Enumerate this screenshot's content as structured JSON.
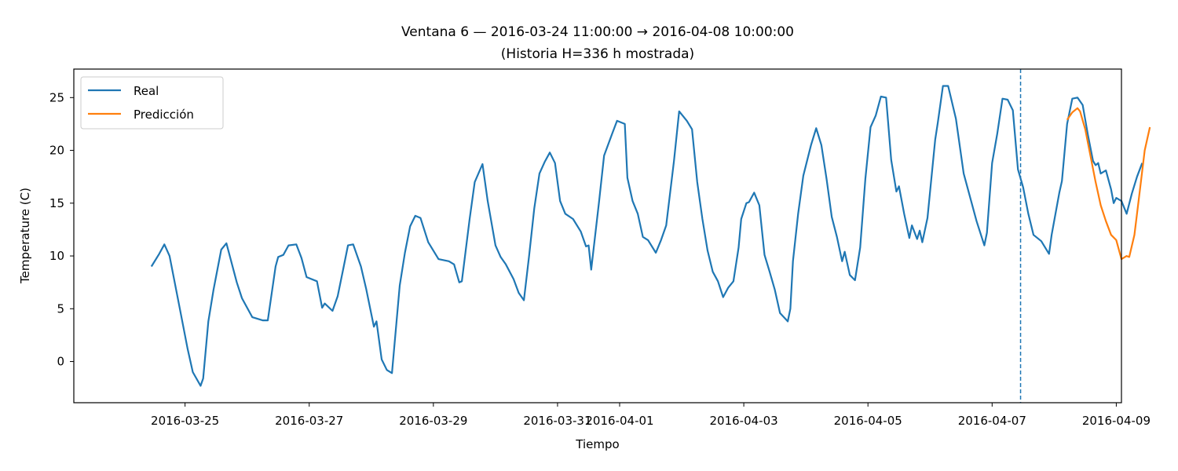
{
  "chart_data": {
    "type": "line",
    "title": "Ventana 6 — 2016-03-24 11:00:00 → 2016-04-08 10:00:00",
    "subtitle": "(Historia H=336 h mostrada)",
    "xlabel": "Tiempo",
    "ylabel": "Temperature (C)",
    "xlim": [
      "2016-03-23T05:00:00",
      "2016-04-09T02:00:00"
    ],
    "ylim": [
      -3.9,
      27.7
    ],
    "xticks": [
      "2016-03-25",
      "2016-03-27",
      "2016-03-29",
      "2016-03-31",
      "2016-04-01",
      "2016-04-03",
      "2016-04-05",
      "2016-04-07",
      "2016-04-09"
    ],
    "yticks": [
      0,
      5,
      10,
      15,
      20,
      25
    ],
    "grid": false,
    "legend_position": "upper left",
    "forecast_start": "2016-04-07T11:00:00",
    "series": [
      {
        "name": "Real",
        "color": "#1f77b4",
        "points": [
          [
            "2016-03-24T11:00:00",
            9.0
          ],
          [
            "2016-03-24T14:00:00",
            10.2
          ],
          [
            "2016-03-24T16:00:00",
            11.1
          ],
          [
            "2016-03-24T18:00:00",
            10.0
          ],
          [
            "2016-03-24T22:00:00",
            5.0
          ],
          [
            "2016-03-25T01:00:00",
            1.2
          ],
          [
            "2016-03-25T03:00:00",
            -1.0
          ],
          [
            "2016-03-25T06:00:00",
            -2.3
          ],
          [
            "2016-03-25T07:00:00",
            -1.6
          ],
          [
            "2016-03-25T09:00:00",
            3.8
          ],
          [
            "2016-03-25T11:00:00",
            6.8
          ],
          [
            "2016-03-25T14:00:00",
            10.6
          ],
          [
            "2016-03-25T16:00:00",
            11.2
          ],
          [
            "2016-03-25T20:00:00",
            7.5
          ],
          [
            "2016-03-25T22:00:00",
            6.0
          ],
          [
            "2016-03-26T02:00:00",
            4.2
          ],
          [
            "2016-03-26T06:00:00",
            3.9
          ],
          [
            "2016-03-26T08:00:00",
            3.9
          ],
          [
            "2016-03-26T11:00:00",
            9.0
          ],
          [
            "2016-03-26T12:00:00",
            9.9
          ],
          [
            "2016-03-26T14:00:00",
            10.1
          ],
          [
            "2016-03-26T16:00:00",
            11.0
          ],
          [
            "2016-03-26T19:00:00",
            11.1
          ],
          [
            "2016-03-26T21:00:00",
            9.8
          ],
          [
            "2016-03-26T23:00:00",
            8.0
          ],
          [
            "2016-03-27T03:00:00",
            7.6
          ],
          [
            "2016-03-27T05:00:00",
            5.1
          ],
          [
            "2016-03-27T06:00:00",
            5.5
          ],
          [
            "2016-03-27T09:00:00",
            4.8
          ],
          [
            "2016-03-27T11:00:00",
            6.2
          ],
          [
            "2016-03-27T13:00:00",
            8.6
          ],
          [
            "2016-03-27T15:00:00",
            11.0
          ],
          [
            "2016-03-27T17:00:00",
            11.1
          ],
          [
            "2016-03-27T20:00:00",
            9.0
          ],
          [
            "2016-03-27T22:00:00",
            6.9
          ],
          [
            "2016-03-28T01:00:00",
            3.3
          ],
          [
            "2016-03-28T02:00:00",
            3.8
          ],
          [
            "2016-03-28T04:00:00",
            0.2
          ],
          [
            "2016-03-28T06:00:00",
            -0.8
          ],
          [
            "2016-03-28T08:00:00",
            -1.1
          ],
          [
            "2016-03-28T11:00:00",
            7.2
          ],
          [
            "2016-03-28T13:00:00",
            10.3
          ],
          [
            "2016-03-28T15:00:00",
            12.8
          ],
          [
            "2016-03-28T17:00:00",
            13.8
          ],
          [
            "2016-03-28T19:00:00",
            13.6
          ],
          [
            "2016-03-28T22:00:00",
            11.3
          ],
          [
            "2016-03-29T02:00:00",
            9.7
          ],
          [
            "2016-03-29T06:00:00",
            9.5
          ],
          [
            "2016-03-29T08:00:00",
            9.2
          ],
          [
            "2016-03-29T10:00:00",
            7.5
          ],
          [
            "2016-03-29T11:00:00",
            7.6
          ],
          [
            "2016-03-29T14:00:00",
            13.5
          ],
          [
            "2016-03-29T16:00:00",
            17.0
          ],
          [
            "2016-03-29T19:00:00",
            18.7
          ],
          [
            "2016-03-29T21:00:00",
            15.2
          ],
          [
            "2016-03-30T00:00:00",
            11.0
          ],
          [
            "2016-03-30T02:00:00",
            9.9
          ],
          [
            "2016-03-30T04:00:00",
            9.2
          ],
          [
            "2016-03-30T07:00:00",
            7.8
          ],
          [
            "2016-03-30T09:00:00",
            6.5
          ],
          [
            "2016-03-30T11:00:00",
            5.8
          ],
          [
            "2016-03-30T13:00:00",
            10.0
          ],
          [
            "2016-03-30T15:00:00",
            14.5
          ],
          [
            "2016-03-30T17:00:00",
            17.8
          ],
          [
            "2016-03-30T19:00:00",
            18.9
          ],
          [
            "2016-03-30T21:00:00",
            19.8
          ],
          [
            "2016-03-30T23:00:00",
            18.8
          ],
          [
            "2016-03-31T01:00:00",
            15.2
          ],
          [
            "2016-03-31T03:00:00",
            14.0
          ],
          [
            "2016-03-31T06:00:00",
            13.5
          ],
          [
            "2016-03-31T09:00:00",
            12.3
          ],
          [
            "2016-03-31T11:00:00",
            10.9
          ],
          [
            "2016-03-31T12:00:00",
            11.0
          ],
          [
            "2016-03-31T13:00:00",
            8.7
          ],
          [
            "2016-03-31T16:00:00",
            15.0
          ],
          [
            "2016-03-31T18:00:00",
            19.5
          ],
          [
            "2016-03-31T21:00:00",
            21.5
          ],
          [
            "2016-03-31T23:00:00",
            22.8
          ],
          [
            "2016-04-01T02:00:00",
            22.5
          ],
          [
            "2016-04-01T03:00:00",
            17.4
          ],
          [
            "2016-04-01T05:00:00",
            15.2
          ],
          [
            "2016-04-01T07:00:00",
            14.0
          ],
          [
            "2016-04-01T09:00:00",
            11.8
          ],
          [
            "2016-04-01T11:00:00",
            11.5
          ],
          [
            "2016-04-01T14:00:00",
            10.3
          ],
          [
            "2016-04-01T16:00:00",
            11.5
          ],
          [
            "2016-04-01T18:00:00",
            12.9
          ],
          [
            "2016-04-01T21:00:00",
            19.0
          ],
          [
            "2016-04-01T23:00:00",
            23.7
          ],
          [
            "2016-04-02T02:00:00",
            22.8
          ],
          [
            "2016-04-02T04:00:00",
            22.0
          ],
          [
            "2016-04-02T06:00:00",
            17.0
          ],
          [
            "2016-04-02T08:00:00",
            13.5
          ],
          [
            "2016-04-02T10:00:00",
            10.5
          ],
          [
            "2016-04-02T12:00:00",
            8.5
          ],
          [
            "2016-04-02T14:00:00",
            7.6
          ],
          [
            "2016-04-02T16:00:00",
            6.1
          ],
          [
            "2016-04-02T18:00:00",
            7.0
          ],
          [
            "2016-04-02T20:00:00",
            7.6
          ],
          [
            "2016-04-02T22:00:00",
            10.8
          ],
          [
            "2016-04-02T23:00:00",
            13.5
          ],
          [
            "2016-04-03T01:00:00",
            15.0
          ],
          [
            "2016-04-03T02:00:00",
            15.1
          ],
          [
            "2016-04-03T04:00:00",
            16.0
          ],
          [
            "2016-04-03T06:00:00",
            14.8
          ],
          [
            "2016-04-03T08:00:00",
            10.1
          ],
          [
            "2016-04-03T10:00:00",
            8.5
          ],
          [
            "2016-04-03T12:00:00",
            6.8
          ],
          [
            "2016-04-03T14:00:00",
            4.6
          ],
          [
            "2016-04-03T17:00:00",
            3.8
          ],
          [
            "2016-04-03T18:00:00",
            5.0
          ],
          [
            "2016-04-03T19:00:00",
            9.5
          ],
          [
            "2016-04-03T21:00:00",
            14.0
          ],
          [
            "2016-04-03T23:00:00",
            17.6
          ],
          [
            "2016-04-04T02:00:00",
            20.5
          ],
          [
            "2016-04-04T04:00:00",
            22.1
          ],
          [
            "2016-04-04T06:00:00",
            20.5
          ],
          [
            "2016-04-04T08:00:00",
            17.3
          ],
          [
            "2016-04-04T10:00:00",
            13.7
          ],
          [
            "2016-04-04T12:00:00",
            11.8
          ],
          [
            "2016-04-04T14:00:00",
            9.5
          ],
          [
            "2016-04-04T15:00:00",
            10.4
          ],
          [
            "2016-04-04T17:00:00",
            8.2
          ],
          [
            "2016-04-04T19:00:00",
            7.7
          ],
          [
            "2016-04-04T21:00:00",
            10.8
          ],
          [
            "2016-04-04T23:00:00",
            17.3
          ],
          [
            "2016-04-05T01:00:00",
            22.2
          ],
          [
            "2016-04-05T03:00:00",
            23.3
          ],
          [
            "2016-04-05T05:00:00",
            25.1
          ],
          [
            "2016-04-05T07:00:00",
            25.0
          ],
          [
            "2016-04-05T09:00:00",
            19.1
          ],
          [
            "2016-04-05T11:00:00",
            16.1
          ],
          [
            "2016-04-05T12:00:00",
            16.6
          ],
          [
            "2016-04-05T14:00:00",
            14.0
          ],
          [
            "2016-04-05T16:00:00",
            11.7
          ],
          [
            "2016-04-05T17:00:00",
            12.9
          ],
          [
            "2016-04-05T19:00:00",
            11.6
          ],
          [
            "2016-04-05T20:00:00",
            12.4
          ],
          [
            "2016-04-05T21:00:00",
            11.3
          ],
          [
            "2016-04-05T23:00:00",
            13.6
          ],
          [
            "2016-04-06T02:00:00",
            21.0
          ],
          [
            "2016-04-06T03:00:00",
            22.6
          ],
          [
            "2016-04-06T05:00:00",
            26.1
          ],
          [
            "2016-04-06T07:00:00",
            26.1
          ],
          [
            "2016-04-06T10:00:00",
            23.0
          ],
          [
            "2016-04-06T13:00:00",
            17.8
          ],
          [
            "2016-04-06T15:00:00",
            16.0
          ],
          [
            "2016-04-06T18:00:00",
            13.3
          ],
          [
            "2016-04-06T21:00:00",
            11.0
          ],
          [
            "2016-04-06T22:00:00",
            12.2
          ],
          [
            "2016-04-07T00:00:00",
            18.8
          ],
          [
            "2016-04-07T02:00:00",
            21.6
          ],
          [
            "2016-04-07T04:00:00",
            24.9
          ],
          [
            "2016-04-07T06:00:00",
            24.8
          ],
          [
            "2016-04-07T08:00:00",
            23.8
          ],
          [
            "2016-04-07T10:00:00",
            18.2
          ],
          [
            "2016-04-07T12:00:00",
            16.5
          ],
          [
            "2016-04-07T14:00:00",
            14.0
          ],
          [
            "2016-04-07T16:00:00",
            12.0
          ],
          [
            "2016-04-07T19:00:00",
            11.4
          ],
          [
            "2016-04-07T22:00:00",
            10.2
          ],
          [
            "2016-04-07T23:00:00",
            12.0
          ],
          [
            "2016-04-08T02:00:00",
            16.0
          ],
          [
            "2016-04-08T03:00:00",
            17.1
          ],
          [
            "2016-04-08T05:00:00",
            22.5
          ],
          [
            "2016-04-08T07:00:00",
            24.9
          ],
          [
            "2016-04-08T09:00:00",
            25.0
          ],
          [
            "2016-04-08T11:00:00",
            24.3
          ],
          [
            "2016-04-08T13:00:00",
            21.5
          ],
          [
            "2016-04-08T15:00:00",
            19.0
          ],
          [
            "2016-04-08T16:00:00",
            18.6
          ],
          [
            "2016-04-08T17:00:00",
            18.8
          ],
          [
            "2016-04-08T18:00:00",
            17.8
          ],
          [
            "2016-04-08T20:00:00",
            18.1
          ],
          [
            "2016-04-08T22:00:00",
            16.3
          ],
          [
            "2016-04-08T23:00:00",
            15.0
          ],
          [
            "2016-04-09T00:00:00",
            15.5
          ],
          [
            "2016-04-09T02:00:00",
            15.2
          ],
          [
            "2016-04-09T04:00:00",
            14.0
          ],
          [
            "2016-04-09T06:00:00",
            15.9
          ],
          [
            "2016-04-09T08:00:00",
            17.5
          ],
          [
            "2016-04-09T10:00:00",
            18.8
          ]
        ]
      },
      {
        "name": "Predicción",
        "color": "#ff7f0e",
        "points": [
          [
            "2016-04-08T05:00:00",
            22.9
          ],
          [
            "2016-04-08T07:00:00",
            23.6
          ],
          [
            "2016-04-08T09:00:00",
            24.0
          ],
          [
            "2016-04-08T10:00:00",
            23.7
          ],
          [
            "2016-04-08T12:00:00",
            22.0
          ],
          [
            "2016-04-08T14:00:00",
            19.5
          ],
          [
            "2016-04-08T16:00:00",
            17.0
          ],
          [
            "2016-04-08T18:00:00",
            14.8
          ],
          [
            "2016-04-08T20:00:00",
            13.3
          ],
          [
            "2016-04-08T22:00:00",
            12.0
          ],
          [
            "2016-04-09T00:00:00",
            11.5
          ],
          [
            "2016-04-09T02:00:00",
            9.7
          ],
          [
            "2016-04-09T04:00:00",
            10.0
          ],
          [
            "2016-04-09T05:00:00",
            9.9
          ],
          [
            "2016-04-09T07:00:00",
            12.0
          ],
          [
            "2016-04-09T09:00:00",
            16.0
          ],
          [
            "2016-04-09T11:00:00",
            20.0
          ],
          [
            "2016-04-09T13:00:00",
            22.2
          ]
        ]
      }
    ]
  }
}
